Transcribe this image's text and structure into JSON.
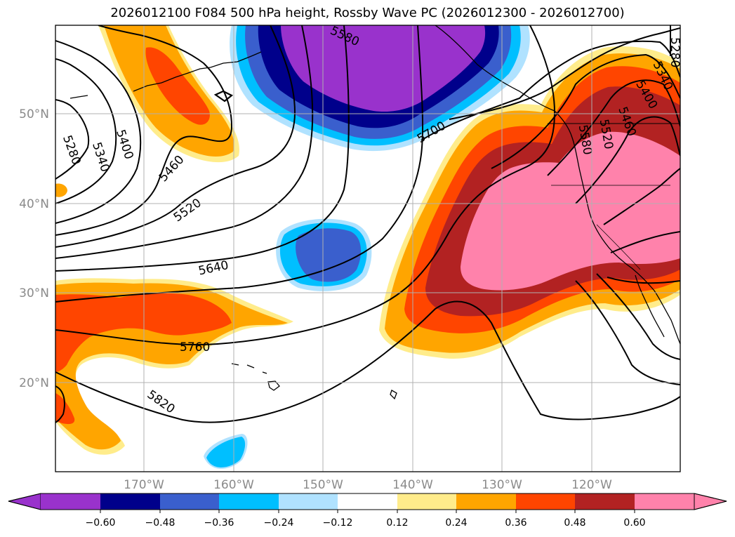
{
  "title": "2026012100 F084 500 hPa height, Rossby Wave PC (2026012300 - 2026012700)",
  "latitude_labels": [
    "50°N",
    "40°N",
    "30°N",
    "20°N"
  ],
  "longitude_labels": [
    "170°W",
    "160°W",
    "150°W",
    "140°W",
    "130°W",
    "120°W"
  ],
  "contour_labels": [
    "5280",
    "5340",
    "5400",
    "5460",
    "5520",
    "5640",
    "5760",
    "5820",
    "5700",
    "5580",
    "5400",
    "5460",
    "5520",
    "5580",
    "5340",
    "5280"
  ],
  "colorbar": {
    "tick_labels": [
      "−0.60",
      "−0.48",
      "−0.36",
      "−0.24",
      "−0.12",
      "0.12",
      "0.24",
      "0.36",
      "0.48",
      "0.60"
    ],
    "colors": [
      "#9932cc",
      "#00008b",
      "#3a5fcd",
      "#00bfff",
      "#b0e2ff",
      "#ffffff",
      "#ffec8b",
      "#ffa500",
      "#ff4500",
      "#b22222",
      "#ff82ab",
      "#ff82ab"
    ]
  }
}
